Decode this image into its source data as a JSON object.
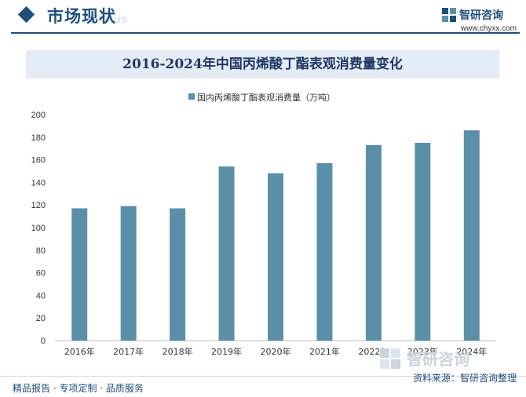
{
  "header": {
    "section_title": "市场现状",
    "section_subtitle": "Status",
    "brand_name": "智研咨询",
    "brand_url": "www.chyxx.com"
  },
  "chart_data": {
    "type": "bar",
    "title": "2016-2024年中国丙烯酸丁酯表观消费量变化",
    "categories": [
      "2016年",
      "2017年",
      "2018年",
      "2019年",
      "2020年",
      "2021年",
      "2022年",
      "2023年",
      "2024年"
    ],
    "series": [
      {
        "name": "国内丙烯酸丁酯表观消费量（万吨）",
        "values": [
          117,
          119,
          117,
          154,
          148,
          157,
          173,
          175,
          186
        ],
        "color": "#5b8fa8"
      }
    ],
    "xlabel": "",
    "ylabel": "",
    "ylim": [
      0,
      200
    ],
    "yticks": [
      0,
      20,
      40,
      60,
      80,
      100,
      120,
      140,
      160,
      180,
      200
    ],
    "grid": false,
    "legend": "top-center"
  },
  "footer": {
    "left_text": "精品报告 · 专项定制 · 品质服务",
    "source_text": "资料来源：智研咨询整理",
    "watermark_text": "智研咨询"
  },
  "colors": {
    "brand": "#1f4e79",
    "bar": "#5b8fa8",
    "title_band": "#e3ecf4"
  }
}
